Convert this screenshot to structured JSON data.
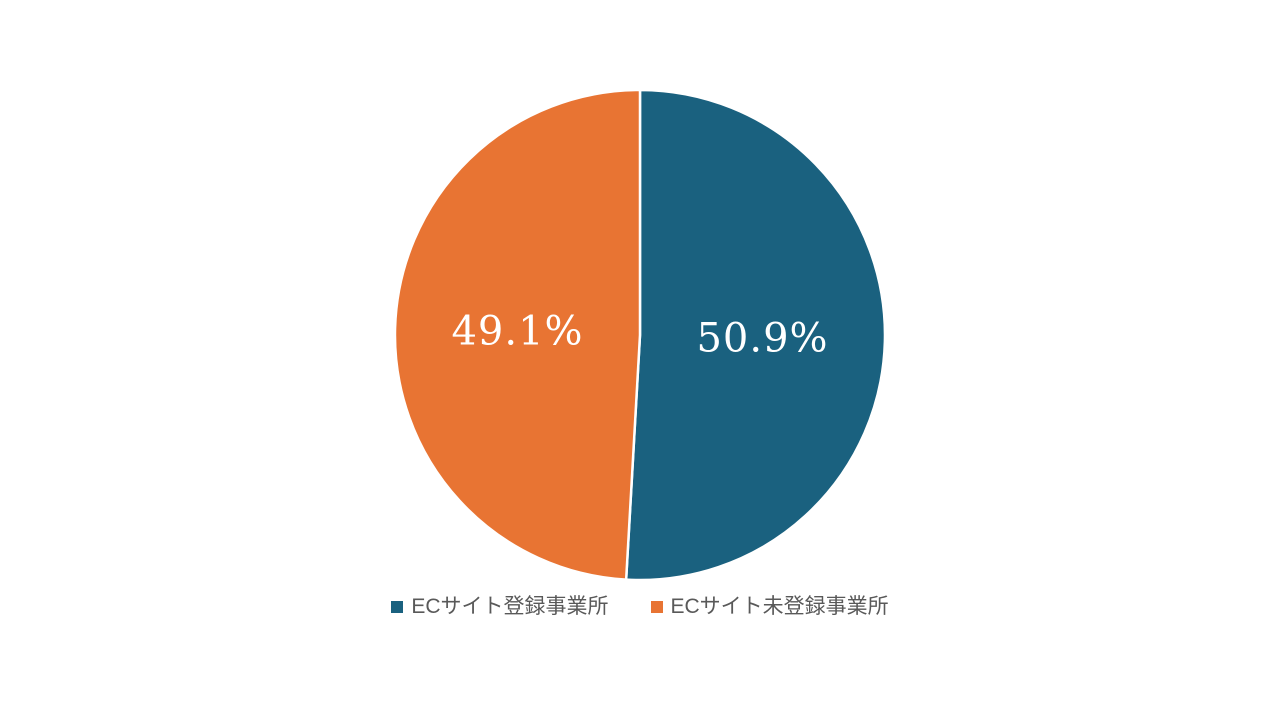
{
  "chart_data": {
    "type": "pie",
    "title": "",
    "start_angle_deg": 0,
    "direction": "clockwise",
    "legend_position": "bottom",
    "data_label_color": "#ffffff",
    "legend_text_color": "#595959",
    "background_color": "#ffffff",
    "divider_color": "#ffffff",
    "series": [
      {
        "name": "ECサイト登録事業所",
        "value": 50.9,
        "label": "50.9%",
        "color": "#1A617F"
      },
      {
        "name": "ECサイト未登録事業所",
        "value": 49.1,
        "label": "49.1%",
        "color": "#E87433"
      }
    ]
  },
  "legend": {
    "items": [
      {
        "label": "ECサイト登録事業所"
      },
      {
        "label": "ECサイト未登録事業所"
      }
    ]
  }
}
